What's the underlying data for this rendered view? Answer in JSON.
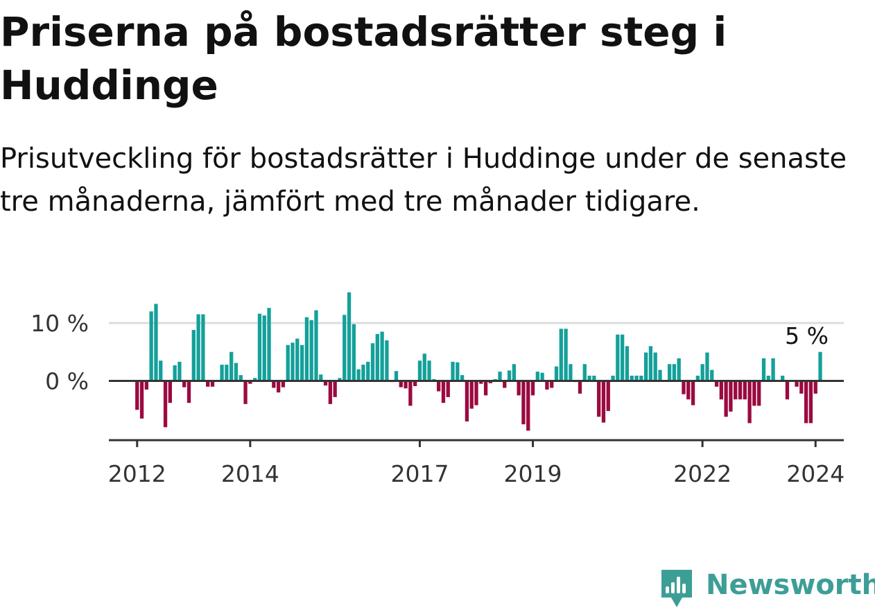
{
  "title": "Priserna på bostadsrätter steg i Huddinge",
  "subtitle": "Prisutveckling för bostadsrätter i Huddinge under de senaste tre månaderna, jämfört med tre månader tidigare.",
  "brand": {
    "name": "Newsworthy",
    "logo_icon": "newsworthy-chart-bubble-icon",
    "color": "#3d9e96"
  },
  "chart_data": {
    "type": "bar",
    "unit": "%",
    "x_start": "2012-01",
    "x_step": "month",
    "xlim": [
      "2011-07",
      "2024-07"
    ],
    "ylim": [
      -10,
      15.5
    ],
    "y_ticks": [
      {
        "value": 0,
        "label": "0 %"
      },
      {
        "value": 10,
        "label": "10 %"
      }
    ],
    "x_ticks": [
      {
        "date": "2012-01",
        "label": "2012"
      },
      {
        "date": "2014-01",
        "label": "2014"
      },
      {
        "date": "2017-01",
        "label": "2017"
      },
      {
        "date": "2019-01",
        "label": "2019"
      },
      {
        "date": "2022-01",
        "label": "2022"
      },
      {
        "date": "2024-01",
        "label": "2024"
      }
    ],
    "grid": true,
    "last_value_label": "5 %",
    "colors": {
      "positive": "#14a09a",
      "negative": "#9b0a40",
      "grid": "#dddddd",
      "axis": "#333333"
    },
    "values": [
      -5,
      -6.5,
      -1.5,
      12,
      13.3,
      3.5,
      -8,
      -3.8,
      2.7,
      3.3,
      -1.1,
      -3.8,
      8.8,
      11.5,
      11.5,
      -1,
      -1,
      0,
      2.8,
      2.8,
      5,
      3.1,
      1,
      -4,
      -0.5,
      0.5,
      11.6,
      11.3,
      12.6,
      -1.2,
      -2,
      -1.1,
      6.2,
      6.6,
      7.3,
      6.2,
      11,
      10.5,
      12.2,
      1.1,
      -0.8,
      -4,
      -2.8,
      0.5,
      11.4,
      15.3,
      9.8,
      2,
      2.8,
      3.3,
      6.5,
      8.1,
      8.5,
      7,
      -0.2,
      1.7,
      -1.1,
      -1.3,
      -4.3,
      -0.9,
      3.5,
      4.7,
      3.5,
      0.3,
      -1.8,
      -3.8,
      -2.8,
      3.3,
      3.2,
      1,
      -7,
      -4.8,
      -4.2,
      -0.5,
      -2.5,
      -0.4,
      0.3,
      1.6,
      -1.2,
      1.8,
      2.9,
      -2.5,
      -7.5,
      -8.6,
      -2.5,
      1.6,
      1.4,
      -1.5,
      -1.2,
      2.5,
      9,
      9,
      2.9,
      -0.2,
      -2.2,
      2.9,
      0.9,
      0.9,
      -6.2,
      -7.2,
      -5.2,
      0.9,
      8,
      8,
      6,
      0.9,
      0.9,
      0.9,
      4.9,
      6,
      4.9,
      1.9,
      0,
      2.9,
      2.9,
      3.9,
      -2.3,
      -3.2,
      -4.2,
      0.9,
      2.9,
      4.9,
      1.9,
      -1,
      -3.2,
      -6.2,
      -5.3,
      -3.2,
      -3.2,
      -3.2,
      -7.3,
      -4.3,
      -4.3,
      3.9,
      0.9,
      3.9,
      0,
      0.9,
      -3.2,
      0,
      -1,
      -2.2,
      -7.3,
      -7.3,
      -2.2,
      5
    ]
  }
}
